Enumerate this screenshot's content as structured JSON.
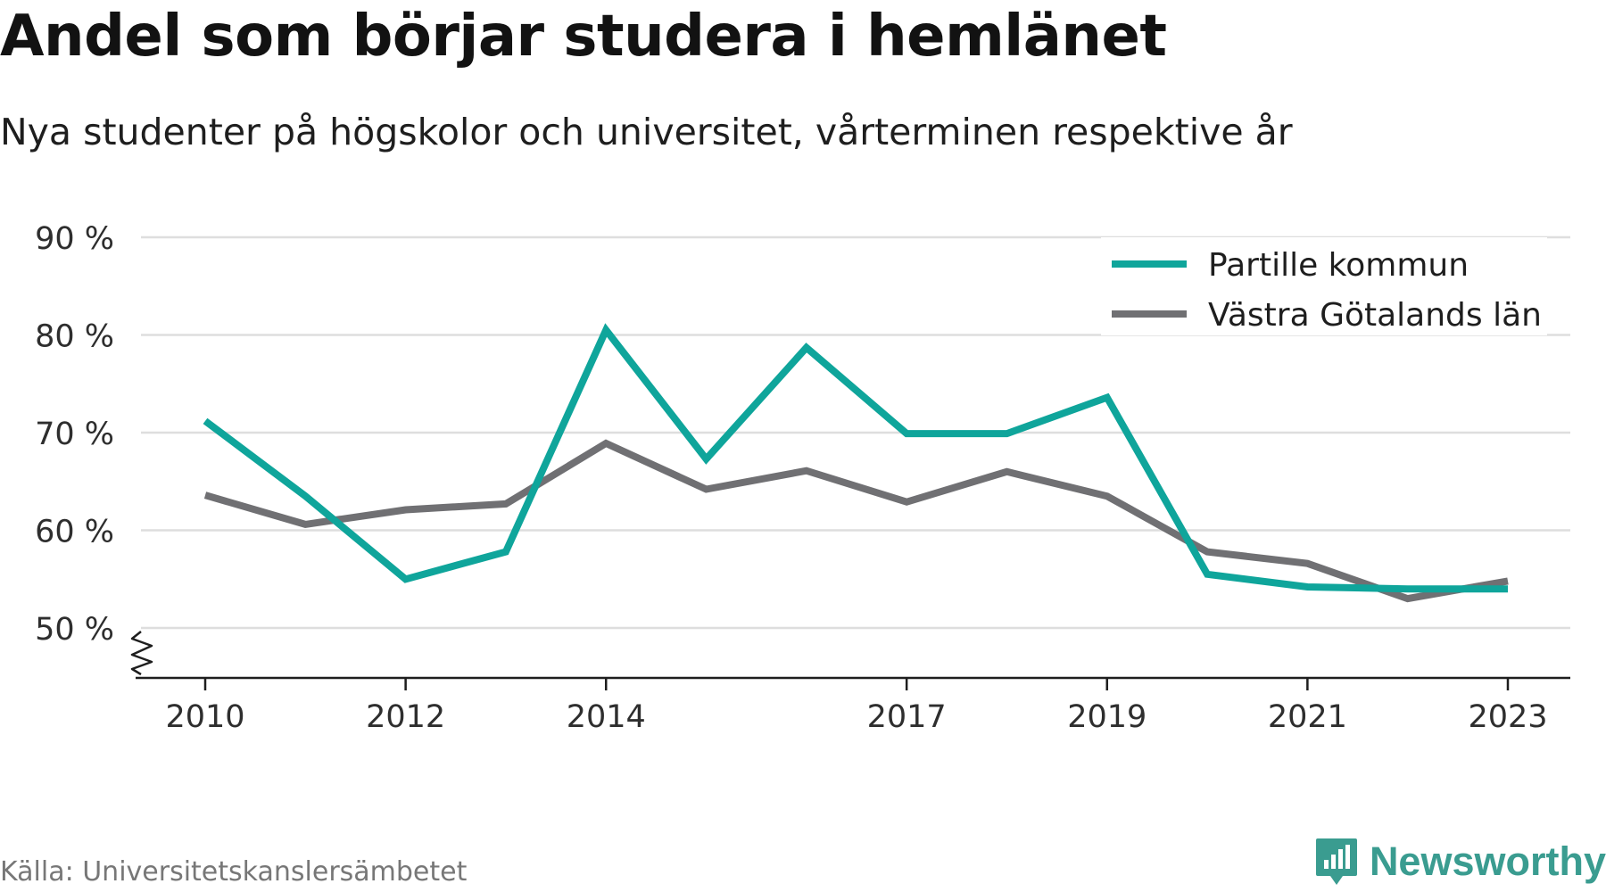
{
  "title": "Andel som börjar studera i hemlänet",
  "subtitle": "Nya studenter på högskolor och universitet, vårterminen respektive år",
  "source": "Källa: Universitetskanslersämbetet",
  "brand": {
    "name": "Newsworthy",
    "icon": "newsworthy-logo-icon",
    "color": "#3a9c90"
  },
  "chart_data": {
    "type": "line",
    "x": [
      2010,
      2011,
      2012,
      2013,
      2014,
      2015,
      2016,
      2017,
      2018,
      2019,
      2020,
      2021,
      2022,
      2023
    ],
    "x_tick_labels": [
      "2010",
      "2012",
      "2014",
      "2017",
      "2019",
      "2021",
      "2023"
    ],
    "y_tick_labels": [
      "50 %",
      "60 %",
      "70 %",
      "80 %",
      "90 %"
    ],
    "y_ticks": [
      50,
      60,
      70,
      80,
      90
    ],
    "ylim": [
      45,
      90
    ],
    "y_axis_break": true,
    "grid": true,
    "legend_position": "top-right",
    "series": [
      {
        "name": "Partille kommun",
        "color": "#0fa59b",
        "values": [
          71.2,
          63.5,
          55.0,
          57.8,
          80.5,
          67.3,
          78.7,
          69.9,
          69.9,
          73.6,
          55.5,
          54.2,
          54.0,
          54.0
        ]
      },
      {
        "name": "Västra Götalands län",
        "color": "#707073",
        "values": [
          63.6,
          60.6,
          62.1,
          62.7,
          68.9,
          64.2,
          66.1,
          62.9,
          66.0,
          63.5,
          57.8,
          56.6,
          53.0,
          54.8
        ]
      }
    ]
  }
}
